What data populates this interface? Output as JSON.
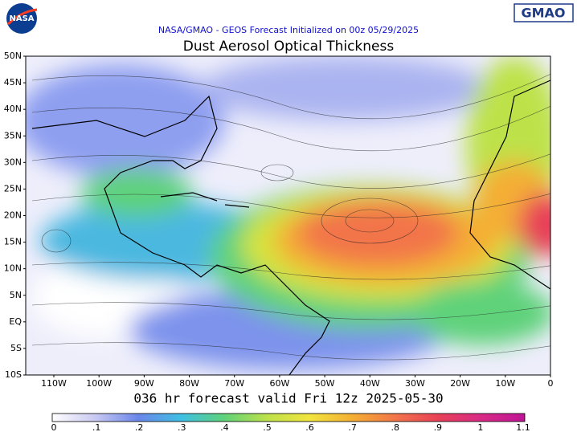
{
  "logo": {
    "nasa": "NASA",
    "gmao": "GMAO"
  },
  "header": {
    "subtitle": "NASA/GMAO - GEOS Forecast Initialized on 00z 05/29/2025",
    "title": "Dust Aerosol Optical Thickness"
  },
  "map": {
    "lat_labels": [
      "50N",
      "45N",
      "40N",
      "35N",
      "30N",
      "25N",
      "20N",
      "15N",
      "10N",
      "5N",
      "EQ",
      "5S",
      "10S"
    ],
    "lon_labels": [
      "110W",
      "100W",
      "90W",
      "80W",
      "70W",
      "60W",
      "50W",
      "40W",
      "30W",
      "20W",
      "10W",
      "0"
    ]
  },
  "footer": {
    "valid": "036 hr forecast valid Fri 12z 2025-05-30"
  },
  "colorbar": {
    "labels": [
      "0",
      ".1",
      ".2",
      ".3",
      ".4",
      ".5",
      ".6",
      ".7",
      ".8",
      ".9",
      "1",
      "1.1"
    ],
    "colors": [
      "#ffffff",
      "#c9c9f2",
      "#6a86ea",
      "#3fbfe4",
      "#5fd27a",
      "#bde24a",
      "#f2e43e",
      "#f4ae34",
      "#f2744a",
      "#e84058",
      "#d82a86",
      "#c01596"
    ]
  }
}
